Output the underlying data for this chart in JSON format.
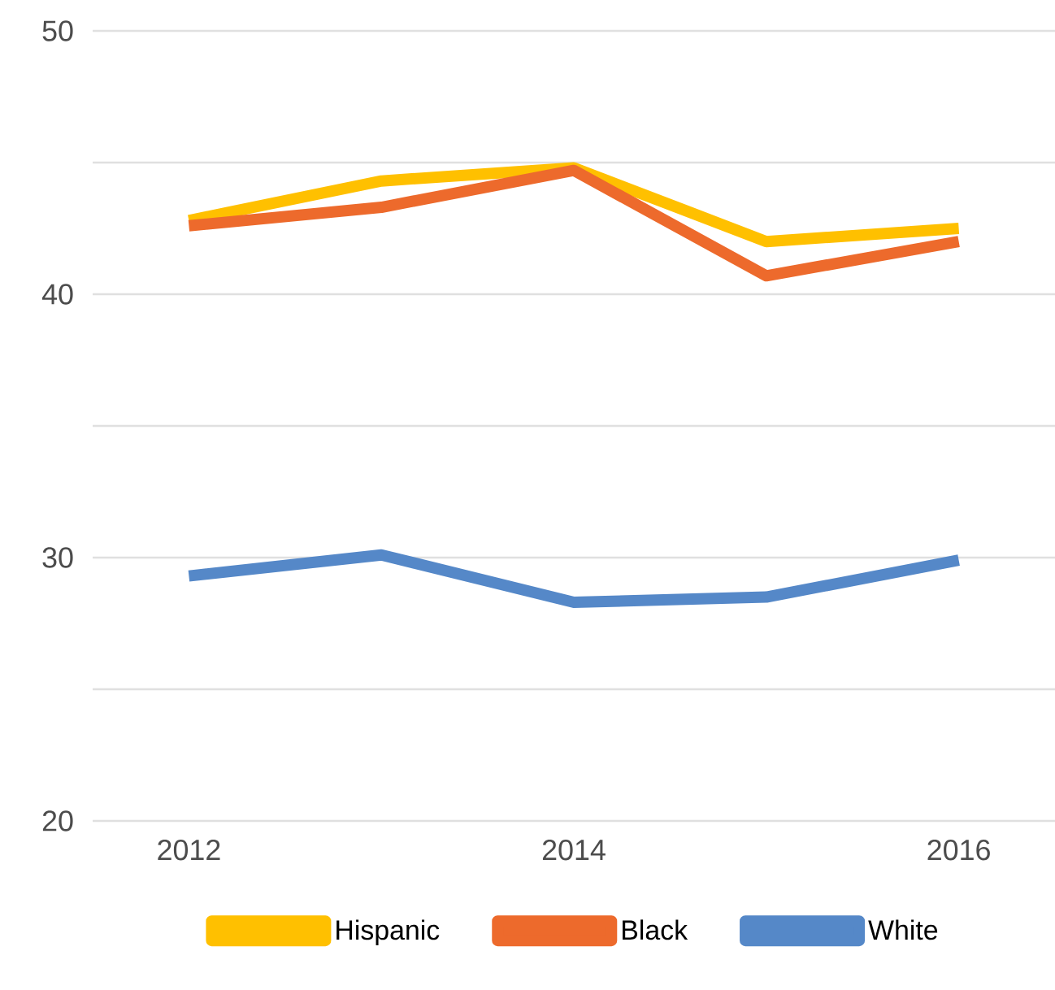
{
  "chart_data": {
    "type": "line",
    "x": [
      2012,
      2013,
      2014,
      2015,
      2016
    ],
    "xlim": [
      2011.5,
      2016.5
    ],
    "xticks": [
      2012,
      2014,
      2016
    ],
    "ylim": [
      20,
      50
    ],
    "yticks": [
      20,
      {
        "value": 25,
        "label": null
      },
      30,
      {
        "value": 35,
        "label": null
      },
      40,
      {
        "value": 45,
        "label": null
      },
      50
    ],
    "grid": "y",
    "legend": "bottom",
    "marker": "none",
    "line_style": "solid",
    "series": [
      {
        "name": "Hispanic",
        "color": "#ffc000",
        "values": [
          42.8,
          44.3,
          44.8,
          42.0,
          42.5
        ]
      },
      {
        "name": "Black",
        "color": "#ed6a2c",
        "values": [
          42.6,
          43.3,
          44.7,
          40.7,
          42.0
        ]
      },
      {
        "name": "White",
        "color": "#5588c8",
        "values": [
          29.3,
          30.1,
          28.3,
          28.5,
          29.9
        ]
      }
    ]
  }
}
